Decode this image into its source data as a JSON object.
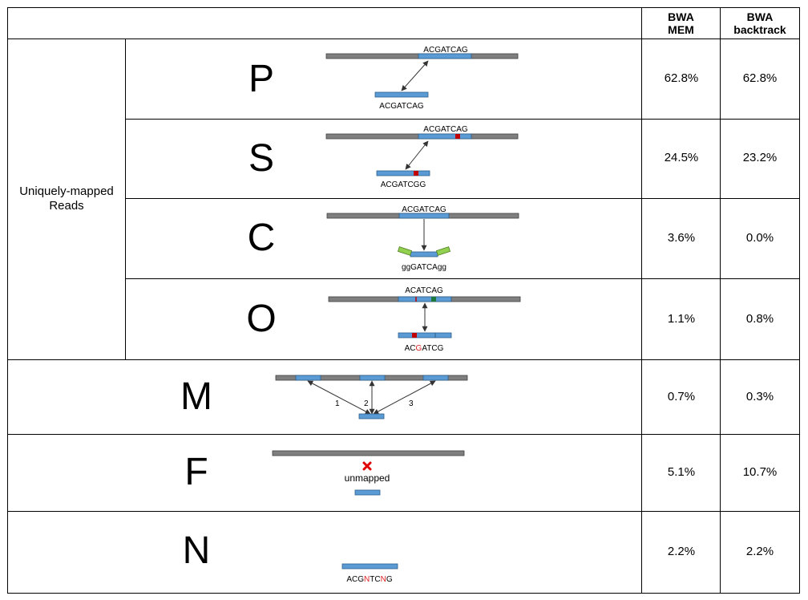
{
  "header": {
    "mem": "BWA\nMEM",
    "backtrack": "BWA\nbacktrack"
  },
  "group_label": "Uniquely-mapped\nReads",
  "rows": [
    {
      "letter": "P",
      "mem": "62.8%",
      "backtrack": "62.8%",
      "ref_label": "ACGATCAG",
      "read_label": "ACGATCAG"
    },
    {
      "letter": "S",
      "mem": "24.5%",
      "backtrack": "23.2%",
      "ref_label": "ACGATCAG",
      "read_label": "ACGATCGG"
    },
    {
      "letter": "C",
      "mem": "3.6%",
      "backtrack": "0.0%",
      "ref_label": "ACGATCAG",
      "read_label": "ggGATCAgg"
    },
    {
      "letter": "O",
      "mem": "1.1%",
      "backtrack": "0.8%",
      "ref_label": "ACATCAG",
      "read_label": "ACGATCG"
    },
    {
      "letter": "M",
      "mem": "0.7%",
      "backtrack": "0.3%",
      "hits": [
        "1",
        "2",
        "3"
      ]
    },
    {
      "letter": "F",
      "mem": "5.1%",
      "backtrack": "10.7%",
      "note": "unmapped"
    },
    {
      "letter": "N",
      "mem": "2.2%",
      "backtrack": "2.2%",
      "read_label": "ACGNTCNG"
    }
  ],
  "colors": {
    "ref": "#7f7f7f",
    "read": "#5b9bd5",
    "mismatch": "#c00000",
    "match_insert": "#1e7a3c",
    "clip": "#92d050",
    "red_text": "#e02020",
    "cross": "#e00000"
  }
}
